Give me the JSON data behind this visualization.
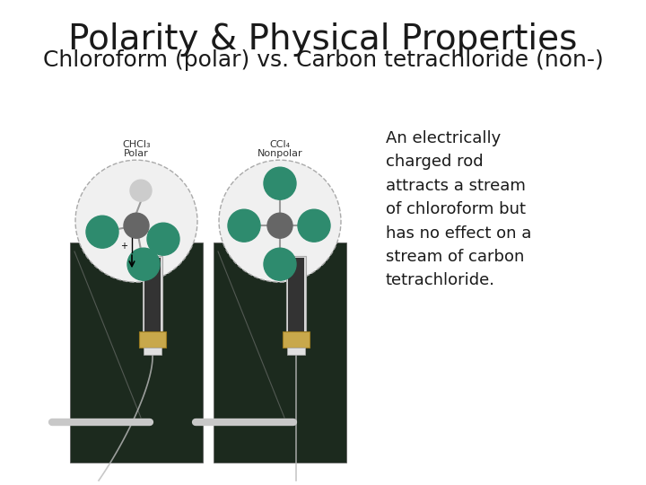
{
  "title": "Polarity & Physical Properties",
  "subtitle": "Chloroform (polar) vs. Carbon tetrachloride (non-)",
  "description": "An electrically\ncharged rod\nattracts a stream\nof chloroform but\nhas no effect on a\nstream of carbon\ntetrachloride.",
  "title_fontsize": 28,
  "subtitle_fontsize": 18,
  "desc_fontsize": 13,
  "bg_color": "#ffffff",
  "title_color": "#1a1a1a",
  "subtitle_color": "#1a1a1a",
  "desc_color": "#1a1a1a",
  "left_label_top": "CHCl₃",
  "left_label_bot": "Polar",
  "right_label_top": "CCl₄",
  "right_label_bot": "Nonpolar",
  "panel_dark": "#1c2a1e",
  "mol_circle_color": "#f0f0f0",
  "mol_circle_edge": "#aaaaaa",
  "c_atom_color": "#666666",
  "h_atom_color": "#cccccc",
  "cl_atom_color": "#2e8b6e",
  "bond_color": "#999999",
  "burette_color": "#d0d0d0",
  "stopcock_color": "#c8a84b",
  "stream_color": "#bbbbbb",
  "rod_color": "#c8c8c8"
}
